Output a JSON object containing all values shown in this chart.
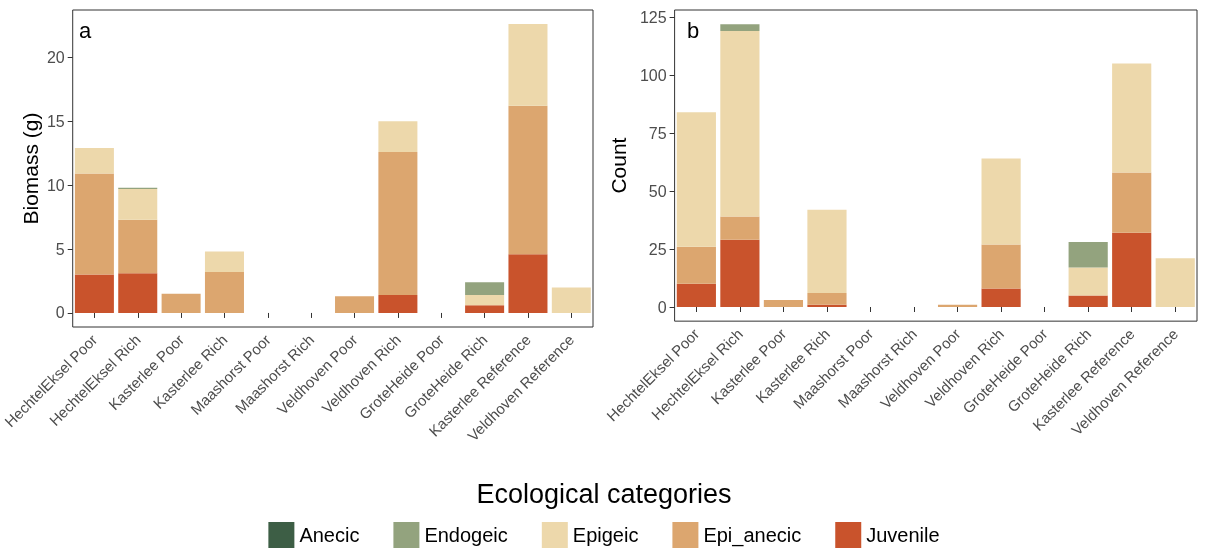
{
  "chart_data": [
    {
      "type": "bar",
      "title": "a",
      "ylabel": "Biomass (g)",
      "legend_title": "Ecological categories",
      "legend": "bottom",
      "stacked": true,
      "grid": false,
      "categories": [
        "HechtelEksel Poor",
        "HechtelEksel Rich",
        "Kasterlee Poor",
        "Kasterlee Rich",
        "Maashorst Poor",
        "Maashorst Rich",
        "Veldhoven Poor",
        "Veldhoven Rich",
        "GroteHeide Poor",
        "GroteHeide Rich",
        "Kasterlee Reference",
        "Veldhoven Reference"
      ],
      "ylim": [
        -1.1,
        23.7
      ],
      "yticks": [
        0,
        5,
        10,
        15,
        20
      ],
      "series": [
        {
          "name": "Juvenile",
          "color": "#c9532c",
          "values": [
            3.0,
            3.1,
            0,
            0,
            0,
            0,
            0,
            1.4,
            0,
            0.6,
            4.6,
            0
          ]
        },
        {
          "name": "Epi_anecic",
          "color": "#dca66f",
          "values": [
            7.9,
            4.2,
            1.5,
            3.2,
            0,
            0,
            1.3,
            11.2,
            0,
            0,
            11.6,
            0
          ]
        },
        {
          "name": "Epigeic",
          "color": "#edd8ab",
          "values": [
            2.0,
            2.4,
            0,
            1.6,
            0,
            0,
            0,
            2.4,
            0,
            0.8,
            6.4,
            2.0
          ]
        },
        {
          "name": "Endogeic",
          "color": "#93a37e",
          "values": [
            0,
            0.1,
            0,
            0,
            0,
            0,
            0,
            0,
            0,
            1.0,
            0,
            0
          ]
        },
        {
          "name": "Anecic",
          "color": "#3d5e45",
          "values": [
            0,
            0,
            0,
            0,
            0,
            0,
            0,
            0,
            0,
            0,
            0,
            0
          ]
        }
      ]
    },
    {
      "type": "bar",
      "title": "b",
      "ylabel": "Count",
      "stacked": true,
      "grid": false,
      "categories": [
        "HechtelEksel Poor",
        "HechtelEksel Rich",
        "Kasterlee Poor",
        "Kasterlee Rich",
        "Maashorst Poor",
        "Maashorst Rich",
        "Veldhoven Poor",
        "Veldhoven Rich",
        "GroteHeide Poor",
        "GroteHeide Rich",
        "Kasterlee Reference",
        "Veldhoven Reference"
      ],
      "ylim": [
        -6.1,
        128.1
      ],
      "yticks": [
        0,
        25,
        50,
        75,
        100,
        125
      ],
      "series": [
        {
          "color": "#c9532c",
          "values": [
            10,
            29,
            0,
            1,
            0,
            0,
            0,
            8,
            0,
            5,
            32,
            0
          ]
        },
        {
          "color": "#dca66f",
          "values": [
            16,
            10,
            3,
            5,
            0,
            0,
            1,
            19,
            0,
            0,
            26,
            0
          ]
        },
        {
          "color": "#edd8ab",
          "values": [
            58,
            80,
            0,
            36,
            0,
            0,
            0,
            37,
            0,
            12,
            47,
            21
          ]
        },
        {
          "color": "#93a37e",
          "values": [
            0,
            3,
            0,
            0,
            0,
            0,
            0,
            0,
            0,
            11,
            0,
            0
          ]
        },
        {
          "color": "#3d5e45",
          "values": [
            0,
            0,
            0,
            0,
            0,
            0,
            0,
            0,
            0,
            0,
            0,
            0
          ]
        }
      ]
    }
  ]
}
